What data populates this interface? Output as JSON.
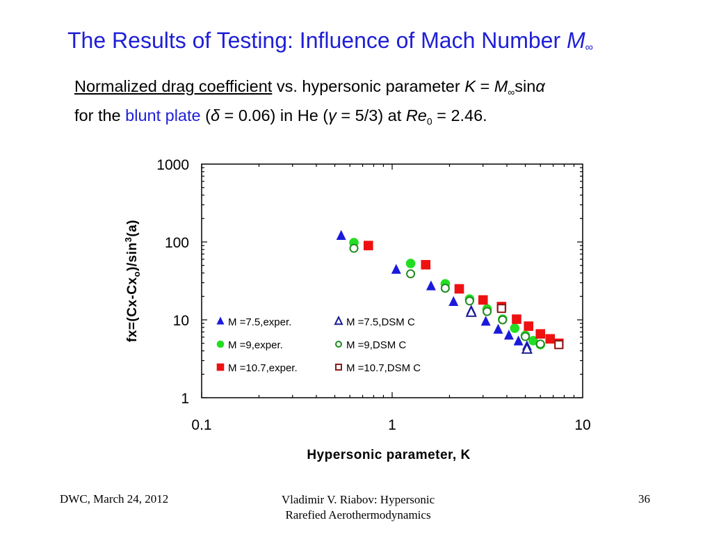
{
  "slide": {
    "title_main": "The Results of Testing: Influence of Mach Number ",
    "title_M": "M",
    "title_sub": "∞",
    "subtitle_line1_underlined": "Normalized drag coefficient",
    "subtitle_line1_rest": " vs. hypersonic parameter ",
    "subtitle_K": "K",
    "subtitle_eq": " = ",
    "subtitle_M": "M",
    "subtitle_M_sub": "∞",
    "subtitle_sin": "sin",
    "subtitle_alpha": "α",
    "subtitle_line2_a": "for the ",
    "subtitle_line2_blue": "blunt plate",
    "subtitle_line2_b": " (",
    "subtitle_delta": "δ",
    "subtitle_line2_c": " = 0.06) in He (",
    "subtitle_gamma": "γ",
    "subtitle_line2_d": " = 5/3) at ",
    "subtitle_Re": "Re",
    "subtitle_Re_sub": "0",
    "subtitle_line2_e": " = 2.46."
  },
  "footer": {
    "left": "DWC, March 24, 2012",
    "center_line1": "Vladimir V. Riabov: Hypersonic",
    "center_line2": "Rarefied Aerothermodynamics",
    "page": "36"
  },
  "chart_data": {
    "type": "scatter",
    "xlabel": "Hypersonic parameter, K",
    "ylabel_parts": [
      "fx=(Cx-Cx",
      "o",
      ")/sin",
      "3",
      "(a)"
    ],
    "x_scale": "log",
    "y_scale": "log",
    "xlim": [
      0.1,
      10
    ],
    "ylim": [
      1,
      1000
    ],
    "x_ticks": [
      {
        "v": 0.1,
        "label": "0.1"
      },
      {
        "v": 1,
        "label": "1"
      },
      {
        "v": 10,
        "label": "10"
      }
    ],
    "y_ticks": [
      {
        "v": 1,
        "label": "1"
      },
      {
        "v": 10,
        "label": "10"
      },
      {
        "v": 100,
        "label": "100"
      },
      {
        "v": 1000,
        "label": "1000"
      }
    ],
    "grid": false,
    "legend_position": "inside-lower-left",
    "series": [
      {
        "name": "M =7.5,exper.",
        "marker": "triangle",
        "filled": true,
        "color": "#1a1adb",
        "points": [
          [
            0.54,
            120
          ],
          [
            1.05,
            44
          ],
          [
            1.6,
            27
          ],
          [
            2.1,
            17
          ],
          [
            2.6,
            13.2
          ],
          [
            3.1,
            9.5
          ],
          [
            3.6,
            7.5
          ],
          [
            4.1,
            6.3
          ],
          [
            4.6,
            5.3
          ],
          [
            5.1,
            4.6
          ]
        ]
      },
      {
        "name": "M =7.5,DSM C",
        "marker": "triangle",
        "filled": false,
        "color": "#1a1a8f",
        "points": [
          [
            2.6,
            12.5
          ],
          [
            5.1,
            4.2
          ]
        ]
      },
      {
        "name": "M =9,exper.",
        "marker": "circle",
        "filled": true,
        "color": "#22dd22",
        "points": [
          [
            0.63,
            98
          ],
          [
            1.25,
            53
          ],
          [
            1.9,
            29
          ],
          [
            2.55,
            18.5
          ],
          [
            3.15,
            13.8
          ],
          [
            3.8,
            10.2
          ],
          [
            4.4,
            7.8
          ],
          [
            5.0,
            6.3
          ],
          [
            5.5,
            5.4
          ],
          [
            6.0,
            4.8
          ]
        ]
      },
      {
        "name": "M =9,DSM C",
        "marker": "circle",
        "filled": false,
        "color": "#1f8a1f",
        "points": [
          [
            0.63,
            83
          ],
          [
            1.25,
            39
          ],
          [
            1.9,
            25.5
          ],
          [
            2.55,
            17.5
          ],
          [
            3.15,
            12.8
          ],
          [
            3.8,
            10
          ],
          [
            5.0,
            6.1
          ],
          [
            6.0,
            4.9
          ]
        ]
      },
      {
        "name": "M =10.7,exper.",
        "marker": "square",
        "filled": true,
        "color": "#ee1111",
        "points": [
          [
            0.75,
            90
          ],
          [
            1.5,
            51
          ],
          [
            2.25,
            25
          ],
          [
            3.0,
            18
          ],
          [
            3.75,
            14.8
          ],
          [
            4.5,
            10.2
          ],
          [
            5.2,
            8.3
          ],
          [
            6.0,
            6.6
          ],
          [
            6.75,
            5.7
          ],
          [
            7.5,
            5.0
          ]
        ]
      },
      {
        "name": "M =10.7,DSM C",
        "marker": "square",
        "filled": false,
        "color": "#8b1a1a",
        "points": [
          [
            3.75,
            14
          ],
          [
            7.5,
            4.8
          ]
        ]
      }
    ]
  }
}
